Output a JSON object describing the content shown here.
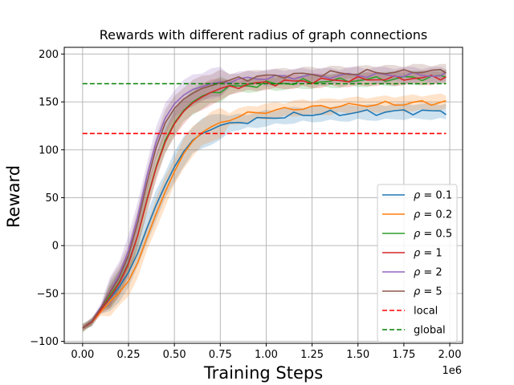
{
  "chart_data": {
    "type": "line",
    "title": "Rewards with different radius of graph connections",
    "xlabel": "Training Steps",
    "ylabel": "Reward",
    "x_offset_label": "1e6",
    "xlim": [
      -0.1,
      2.07
    ],
    "ylim": [
      -102,
      207
    ],
    "x_ticks": [
      0.0,
      0.25,
      0.5,
      0.75,
      1.0,
      1.25,
      1.5,
      1.75,
      2.0
    ],
    "x_tick_labels": [
      "0.00",
      "0.25",
      "0.50",
      "0.75",
      "1.00",
      "1.25",
      "1.50",
      "1.75",
      "2.00"
    ],
    "y_ticks": [
      -100,
      -50,
      0,
      50,
      100,
      150,
      200
    ],
    "y_tick_labels": [
      "−100",
      "−50",
      "0",
      "50",
      "100",
      "150",
      "200"
    ],
    "grid": true,
    "legend_position": "lower-right",
    "x": [
      0.0,
      0.05,
      0.1,
      0.15,
      0.2,
      0.25,
      0.3,
      0.35,
      0.4,
      0.45,
      0.5,
      0.55,
      0.6,
      0.65,
      0.7,
      0.75,
      0.8,
      0.85,
      0.9,
      0.95,
      1.0,
      1.05,
      1.1,
      1.15,
      1.2,
      1.25,
      1.3,
      1.35,
      1.4,
      1.45,
      1.5,
      1.55,
      1.6,
      1.65,
      1.7,
      1.75,
      1.8,
      1.85,
      1.9,
      1.95,
      1.98
    ],
    "series": [
      {
        "name": "ρ = 0.1",
        "color": "#1f77b4",
        "band": 6,
        "values": [
          -86,
          -80,
          -67,
          -55,
          -43,
          -28,
          -8,
          18,
          42,
          63,
          82,
          98,
          110,
          117,
          121,
          124,
          127,
          129,
          130,
          131,
          133,
          134,
          135,
          136,
          137,
          137,
          138,
          138,
          138,
          138,
          139,
          139,
          139,
          139,
          140,
          140,
          140,
          140,
          140,
          140,
          140
        ]
      },
      {
        "name": "ρ = 0.2",
        "color": "#ff7f0e",
        "band": 6,
        "values": [
          -86,
          -80,
          -69,
          -58,
          -49,
          -37,
          -18,
          8,
          33,
          56,
          77,
          96,
          109,
          118,
          124,
          128,
          132,
          135,
          137,
          139,
          140,
          141,
          142,
          143,
          144,
          144,
          145,
          145,
          146,
          146,
          147,
          147,
          147,
          148,
          148,
          148,
          149,
          149,
          149,
          150,
          150
        ]
      },
      {
        "name": "ρ = 0.5",
        "color": "#2ca02c",
        "band": 5,
        "values": [
          -86,
          -80,
          -66,
          -52,
          -38,
          -18,
          10,
          48,
          82,
          110,
          128,
          141,
          150,
          156,
          160,
          163,
          165,
          166,
          167,
          168,
          169,
          169,
          170,
          170,
          171,
          171,
          172,
          172,
          172,
          173,
          173,
          173,
          174,
          174,
          174,
          175,
          175,
          175,
          176,
          176,
          176
        ]
      },
      {
        "name": "ρ = 1",
        "color": "#d62728",
        "band": 5,
        "values": [
          -86,
          -80,
          -67,
          -54,
          -39,
          -19,
          10,
          47,
          81,
          108,
          127,
          140,
          149,
          155,
          160,
          163,
          165,
          167,
          168,
          169,
          170,
          170,
          171,
          171,
          172,
          172,
          172,
          173,
          173,
          173,
          173,
          174,
          174,
          174,
          174,
          175,
          175,
          175,
          175,
          176,
          176
        ]
      },
      {
        "name": "ρ = 2",
        "color": "#9467bd",
        "band": 6,
        "values": [
          -86,
          -79,
          -64,
          -48,
          -30,
          -5,
          30,
          72,
          108,
          133,
          148,
          157,
          163,
          166,
          169,
          171,
          172,
          173,
          174,
          175,
          175,
          176,
          176,
          176,
          177,
          177,
          177,
          177,
          177,
          178,
          178,
          178,
          178,
          178,
          178,
          178,
          178,
          178,
          178,
          178,
          178
        ]
      },
      {
        "name": "ρ = 5",
        "color": "#8c564b",
        "band": 5,
        "values": [
          -86,
          -79,
          -65,
          -49,
          -33,
          -10,
          24,
          65,
          102,
          128,
          143,
          153,
          159,
          164,
          167,
          170,
          172,
          174,
          175,
          176,
          177,
          177,
          178,
          178,
          179,
          179,
          179,
          180,
          180,
          180,
          180,
          181,
          181,
          181,
          181,
          181,
          182,
          182,
          182,
          182,
          182
        ]
      }
    ],
    "reference_lines": [
      {
        "name": "local",
        "color": "#ff0000",
        "y": 117,
        "x_range": [
          0.0,
          1.98
        ]
      },
      {
        "name": "global",
        "color": "#008000",
        "y": 169,
        "x_range": [
          0.0,
          1.98
        ]
      }
    ]
  }
}
